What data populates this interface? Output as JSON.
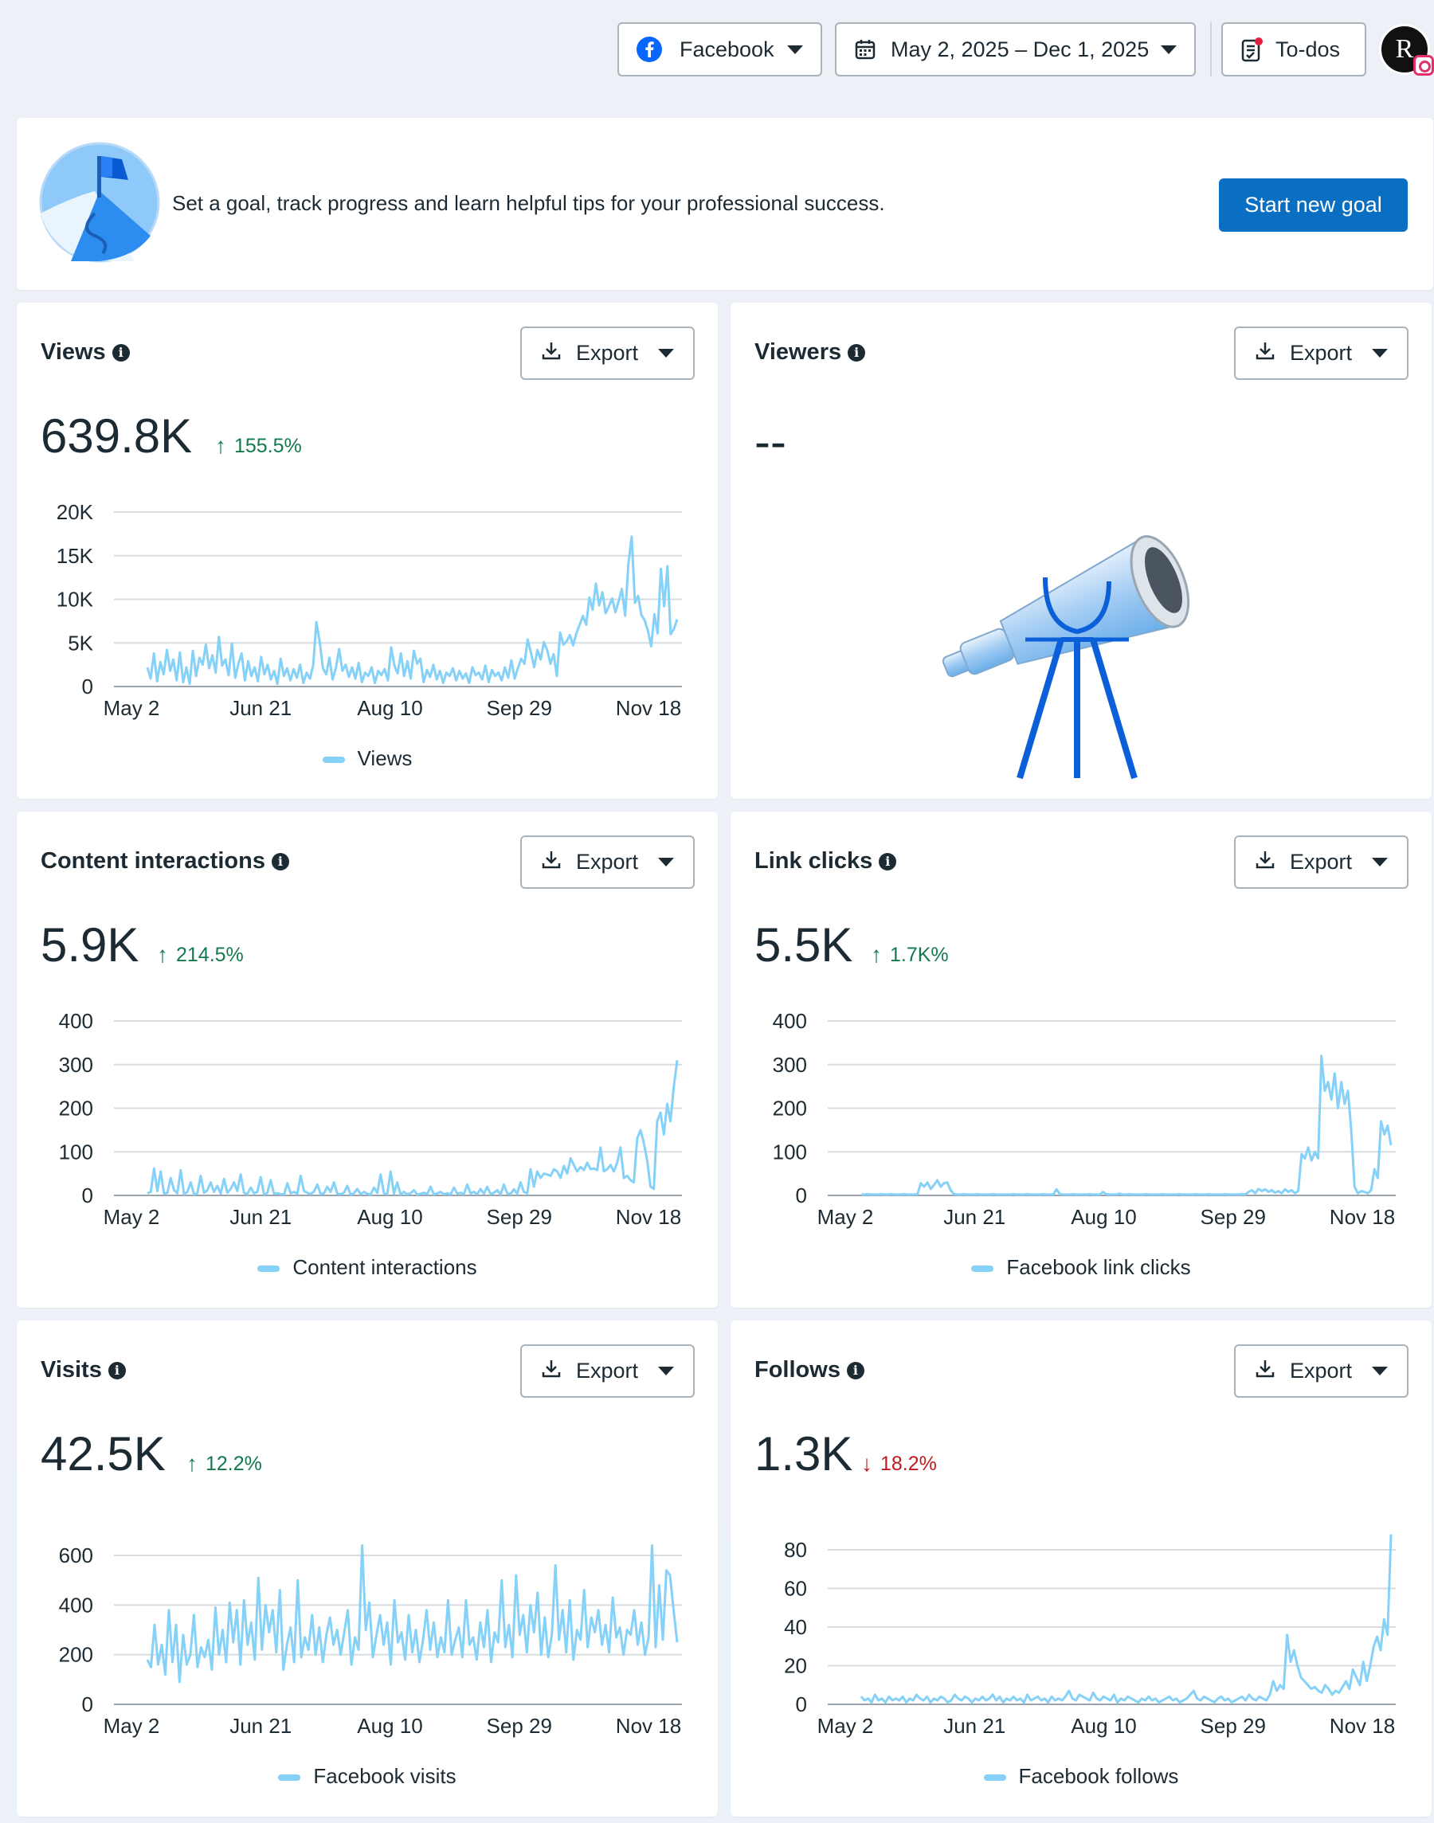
{
  "topbar": {
    "platform": "Facebook",
    "date_range": "May 2, 2025 – Dec 1, 2025",
    "todos": "To-dos",
    "avatar_letter": "R"
  },
  "banner": {
    "text": "Set a goal, track progress and learn helpful tips for your professional success.",
    "button": "Start new goal"
  },
  "export_label": "Export",
  "x_ticks": [
    "May 2",
    "Jun 21",
    "Aug 10",
    "Sep 29",
    "Nov 18"
  ],
  "cards": {
    "views": {
      "title": "Views",
      "value": "639.8K",
      "delta": "155.5%",
      "direction": "up",
      "legend": "Views"
    },
    "viewers": {
      "title": "Viewers",
      "value": "--"
    },
    "content": {
      "title": "Content interactions",
      "value": "5.9K",
      "delta": "214.5%",
      "direction": "up",
      "legend": "Content interactions"
    },
    "links": {
      "title": "Link clicks",
      "value": "5.5K",
      "delta": "1.7K%",
      "direction": "up",
      "legend": "Facebook link clicks"
    },
    "visits": {
      "title": "Visits",
      "value": "42.5K",
      "delta": "12.2%",
      "direction": "up",
      "legend": "Facebook visits"
    },
    "follows": {
      "title": "Follows",
      "value": "1.3K",
      "delta": "18.2%",
      "direction": "down",
      "legend": "Facebook follows"
    }
  },
  "colors": {
    "accent": "#0a6fc2",
    "line": "#86d1f7",
    "up": "#137a4e",
    "down": "#c0191e"
  },
  "chart_data": [
    {
      "id": "views",
      "type": "line",
      "series_name": "Views",
      "x_start": "May 2",
      "x_ticks": [
        "May 2",
        "Jun 21",
        "Aug 10",
        "Sep 29",
        "Nov 18"
      ],
      "yticks": [
        0,
        5000,
        10000,
        15000,
        20000
      ],
      "ytick_labels": [
        "0",
        "5K",
        "10K",
        "15K",
        "20K"
      ],
      "ylim": [
        0,
        20000
      ],
      "values": [
        2200,
        900,
        3800,
        600,
        2800,
        1400,
        4200,
        1800,
        3100,
        700,
        3900,
        500,
        2200,
        300,
        4100,
        1200,
        3300,
        2500,
        4800,
        2100,
        3600,
        1600,
        5700,
        2400,
        3100,
        1300,
        4900,
        1000,
        2600,
        3800,
        700,
        2900,
        1200,
        2200,
        600,
        3400,
        1400,
        2500,
        800,
        1800,
        300,
        3200,
        1200,
        2100,
        700,
        2000,
        1000,
        2500,
        400,
        1600,
        900,
        2400,
        7400,
        5200,
        2100,
        1400,
        3300,
        800,
        2100,
        4300,
        1800,
        2500,
        1100,
        2200,
        900,
        2700,
        500,
        1600,
        1200,
        2200,
        400,
        1800,
        1300,
        2000,
        700,
        4500,
        2400,
        1500,
        3800,
        1200,
        2900,
        900,
        4100,
        2600,
        3200,
        500,
        1900,
        1100,
        2500,
        800,
        1800,
        400,
        1600,
        1200,
        2100,
        700,
        1800,
        900,
        1500,
        400,
        2200,
        1300,
        1600,
        800,
        2400,
        500,
        1900,
        1200,
        1600,
        700,
        2200,
        1000,
        3000,
        900,
        2100,
        3200,
        2600,
        5400,
        3900,
        2200,
        4200,
        3100,
        5100,
        4200,
        2600,
        3700,
        1200,
        6200,
        4800,
        5200,
        5900,
        4700,
        6100,
        7100,
        8100,
        7100,
        10200,
        8800,
        11800,
        9300,
        10800,
        8400,
        9200,
        10100,
        8500,
        9800,
        11200,
        8100,
        14100,
        17200,
        9600,
        10400,
        8200,
        7600,
        6400,
        4600,
        8300,
        6100,
        13500,
        9200,
        13800,
        6000,
        6600,
        7700
      ]
    },
    {
      "id": "content",
      "type": "line",
      "series_name": "Content interactions",
      "x_start": "May 2",
      "x_ticks": [
        "May 2",
        "Jun 21",
        "Aug 10",
        "Sep 29",
        "Nov 18"
      ],
      "yticks": [
        0,
        100,
        200,
        300,
        400
      ],
      "ytick_labels": [
        "0",
        "100",
        "200",
        "300",
        "400"
      ],
      "ylim": [
        0,
        400
      ],
      "values": [
        5,
        8,
        62,
        10,
        55,
        4,
        6,
        40,
        12,
        5,
        58,
        3,
        8,
        30,
        2,
        5,
        45,
        6,
        12,
        30,
        8,
        22,
        4,
        38,
        6,
        15,
        30,
        10,
        48,
        6,
        3,
        18,
        5,
        8,
        42,
        2,
        6,
        35,
        4,
        5,
        3,
        2,
        28,
        5,
        8,
        4,
        45,
        10,
        6,
        3,
        9,
        25,
        3,
        5,
        20,
        8,
        30,
        4,
        3,
        6,
        22,
        2,
        5,
        15,
        3,
        8,
        4,
        2,
        18,
        6,
        48,
        5,
        3,
        55,
        4,
        30,
        2,
        8,
        3,
        5,
        12,
        2,
        4,
        6,
        3,
        20,
        2,
        5,
        8,
        3,
        5,
        2,
        18,
        4,
        6,
        3,
        25,
        5,
        8,
        3,
        15,
        4,
        20,
        3,
        6,
        12,
        2,
        25,
        5,
        3,
        14,
        4,
        30,
        8,
        5,
        60,
        20,
        55,
        40,
        50,
        48,
        45,
        60,
        55,
        40,
        68,
        50,
        85,
        70,
        55,
        65,
        58,
        75,
        60,
        62,
        58,
        110,
        55,
        60,
        70,
        55,
        75,
        110,
        40,
        45,
        35,
        30,
        130,
        150,
        120,
        80,
        20,
        15,
        170,
        190,
        140,
        210,
        170,
        250,
        310
      ]
    },
    {
      "id": "links",
      "type": "line",
      "series_name": "Facebook link clicks",
      "x_start": "May 2",
      "x_ticks": [
        "May 2",
        "Jun 21",
        "Aug 10",
        "Sep 29",
        "Nov 18"
      ],
      "yticks": [
        0,
        100,
        200,
        300,
        400
      ],
      "ytick_labels": [
        "0",
        "100",
        "200",
        "300",
        "400"
      ],
      "ylim": [
        0,
        400
      ],
      "values": [
        2,
        2,
        3,
        2,
        2,
        2,
        3,
        2,
        2,
        3,
        2,
        2,
        2,
        3,
        2,
        2,
        2,
        3,
        28,
        20,
        30,
        15,
        24,
        35,
        20,
        28,
        30,
        12,
        3,
        2,
        2,
        3,
        2,
        2,
        2,
        3,
        2,
        2,
        2,
        2,
        3,
        2,
        2,
        2,
        2,
        2,
        3,
        2,
        2,
        2,
        3,
        2,
        2,
        2,
        2,
        3,
        2,
        2,
        2,
        14,
        3,
        2,
        2,
        2,
        3,
        2,
        2,
        2,
        2,
        3,
        2,
        2,
        2,
        8,
        3,
        2,
        2,
        2,
        4,
        2,
        2,
        3,
        2,
        2,
        2,
        2,
        3,
        2,
        2,
        2,
        2,
        3,
        2,
        2,
        2,
        2,
        3,
        2,
        2,
        2,
        2,
        3,
        2,
        2,
        2,
        3,
        2,
        2,
        2,
        2,
        3,
        2,
        2,
        2,
        2,
        3,
        2,
        8,
        12,
        5,
        15,
        10,
        14,
        8,
        12,
        6,
        10,
        5,
        14,
        8,
        12,
        5,
        10,
        95,
        85,
        110,
        80,
        100,
        85,
        320,
        240,
        260,
        220,
        280,
        200,
        260,
        210,
        240,
        150,
        20,
        5,
        10,
        8,
        5,
        12,
        60,
        40,
        170,
        140,
        160,
        115
      ]
    },
    {
      "id": "visits",
      "type": "line",
      "series_name": "Facebook visits",
      "x_start": "May 2",
      "x_ticks": [
        "May 2",
        "Jun 21",
        "Aug 10",
        "Sep 29",
        "Nov 18"
      ],
      "yticks": [
        0,
        200,
        400,
        600
      ],
      "ytick_labels": [
        "0",
        "200",
        "400",
        "600"
      ],
      "ylim": [
        0,
        700
      ],
      "values": [
        180,
        150,
        320,
        160,
        240,
        120,
        380,
        170,
        320,
        90,
        280,
        160,
        200,
        360,
        150,
        230,
        190,
        260,
        140,
        390,
        200,
        300,
        170,
        410,
        250,
        380,
        160,
        420,
        240,
        330,
        180,
        510,
        220,
        400,
        290,
        380,
        210,
        460,
        140,
        240,
        310,
        170,
        500,
        190,
        270,
        220,
        360,
        200,
        310,
        170,
        280,
        350,
        240,
        300,
        200,
        290,
        380,
        160,
        270,
        220,
        640,
        300,
        410,
        190,
        280,
        360,
        240,
        330,
        160,
        420,
        250,
        290,
        180,
        360,
        210,
        300,
        170,
        260,
        380,
        220,
        330,
        190,
        270,
        210,
        420,
        200,
        260,
        310,
        190,
        420,
        240,
        270,
        180,
        330,
        230,
        380,
        170,
        290,
        250,
        500,
        230,
        320,
        190,
        520,
        280,
        360,
        210,
        400,
        290,
        450,
        200,
        350,
        190,
        280,
        560,
        260,
        380,
        210,
        420,
        180,
        300,
        260,
        460,
        230,
        350,
        290,
        380,
        240,
        320,
        210,
        430,
        270,
        310,
        200,
        300,
        280,
        380,
        240,
        330,
        200,
        270,
        640,
        230,
        480,
        260,
        540,
        520,
        380,
        250
      ]
    },
    {
      "id": "follows",
      "type": "line",
      "series_name": "Facebook follows",
      "x_start": "May 2",
      "x_ticks": [
        "May 2",
        "Jun 21",
        "Aug 10",
        "Sep 29",
        "Nov 18"
      ],
      "yticks": [
        0,
        20,
        40,
        60,
        80
      ],
      "ytick_labels": [
        "0",
        "20",
        "40",
        "60",
        "80"
      ],
      "ylim": [
        0,
        90
      ],
      "values": [
        4,
        2,
        3,
        1,
        5,
        2,
        3,
        1,
        4,
        2,
        3,
        2,
        4,
        1,
        3,
        2,
        5,
        3,
        2,
        4,
        1,
        3,
        2,
        4,
        3,
        1,
        2,
        5,
        3,
        2,
        4,
        3,
        1,
        3,
        2,
        4,
        2,
        3,
        5,
        2,
        4,
        1,
        3,
        2,
        4,
        2,
        3,
        1,
        5,
        2,
        3,
        4,
        2,
        3,
        1,
        4,
        2,
        3,
        2,
        4,
        7,
        3,
        2,
        5,
        4,
        3,
        2,
        6,
        3,
        2,
        4,
        3,
        2,
        5,
        1,
        3,
        2,
        4,
        3,
        2,
        1,
        3,
        2,
        4,
        2,
        3,
        1,
        2,
        3,
        4,
        2,
        3,
        1,
        2,
        3,
        5,
        7,
        3,
        2,
        4,
        3,
        2,
        1,
        3,
        4,
        2,
        3,
        1,
        2,
        3,
        4,
        2,
        5,
        3,
        2,
        4,
        3,
        2,
        5,
        12,
        7,
        10,
        8,
        36,
        22,
        28,
        20,
        14,
        12,
        10,
        8,
        9,
        7,
        6,
        10,
        8,
        5,
        7,
        6,
        9,
        12,
        8,
        18,
        14,
        10,
        22,
        12,
        20,
        30,
        35,
        28,
        44,
        36,
        88
      ]
    }
  ]
}
